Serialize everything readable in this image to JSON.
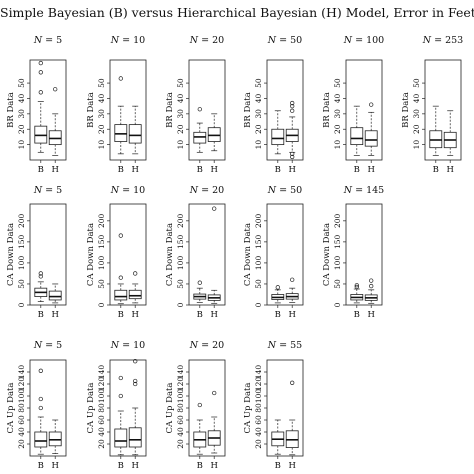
{
  "title": "Simple Bayesian (B) versus Hierarchical Bayesian (H) Model, Error in Feet",
  "chart_data": {
    "type": "boxplot",
    "title": "Simple Bayesian (B) versus Hierarchical Bayesian (H) Model, Error in Feet",
    "categories": [
      "B",
      "H"
    ],
    "rows": [
      {
        "ylabel": "BR Data",
        "ylim": [
          0,
          65
        ],
        "yticks": [
          10,
          20,
          30,
          40,
          50
        ],
        "panels": [
          {
            "label": "N = 5",
            "n": "5",
            "boxes": [
              {
                "name": "B",
                "min": 5,
                "q1": 11,
                "median": 16,
                "q3": 22,
                "max": 38,
                "outliers": [
                  44,
                  57,
                  63
                ]
              },
              {
                "name": "H",
                "min": 3,
                "q1": 10,
                "median": 14,
                "q3": 19,
                "max": 30,
                "outliers": [
                  46
                ]
              }
            ]
          },
          {
            "label": "N = 10",
            "n": "10",
            "boxes": [
              {
                "name": "B",
                "min": 4,
                "q1": 12,
                "median": 17,
                "q3": 23,
                "max": 35,
                "outliers": [
                  53
                ]
              },
              {
                "name": "H",
                "min": 4,
                "q1": 11,
                "median": 16,
                "q3": 23,
                "max": 35,
                "outliers": []
              }
            ]
          },
          {
            "label": "N = 20",
            "n": "20",
            "boxes": [
              {
                "name": "B",
                "min": 5,
                "q1": 11,
                "median": 15,
                "q3": 18,
                "max": 24,
                "outliers": [
                  33
                ]
              },
              {
                "name": "H",
                "min": 6,
                "q1": 12,
                "median": 16,
                "q3": 21,
                "max": 30,
                "outliers": []
              }
            ]
          },
          {
            "label": "N = 50",
            "n": "50",
            "boxes": [
              {
                "name": "B",
                "min": 4,
                "q1": 10,
                "median": 14,
                "q3": 20,
                "max": 32,
                "outliers": []
              },
              {
                "name": "H",
                "min": 5,
                "q1": 12,
                "median": 16,
                "q3": 20,
                "max": 28,
                "outliers": [
                  2,
                  4,
                  32,
                  35,
                  37
                ]
              }
            ]
          },
          {
            "label": "N = 100",
            "n": "100",
            "boxes": [
              {
                "name": "B",
                "min": 3,
                "q1": 10,
                "median": 14,
                "q3": 21,
                "max": 35,
                "outliers": []
              },
              {
                "name": "H",
                "min": 3,
                "q1": 9,
                "median": 13,
                "q3": 19,
                "max": 31,
                "outliers": [
                  36
                ]
              }
            ]
          },
          {
            "label": "N = 253",
            "n": "253",
            "boxes": [
              {
                "name": "B",
                "min": 3,
                "q1": 8,
                "median": 13,
                "q3": 19,
                "max": 35,
                "outliers": []
              },
              {
                "name": "H",
                "min": 3,
                "q1": 8,
                "median": 13,
                "q3": 18,
                "max": 32,
                "outliers": []
              }
            ]
          }
        ]
      },
      {
        "ylabel": "CA Down Data",
        "ylim": [
          0,
          240
        ],
        "yticks": [
          0,
          50,
          100,
          150,
          200
        ],
        "panels": [
          {
            "label": "N = 5",
            "n": "5",
            "boxes": [
              {
                "name": "B",
                "min": 8,
                "q1": 20,
                "median": 30,
                "q3": 40,
                "max": 55,
                "outliers": [
                  68,
                  75
                ]
              },
              {
                "name": "H",
                "min": 5,
                "q1": 12,
                "median": 20,
                "q3": 33,
                "max": 50,
                "outliers": []
              }
            ]
          },
          {
            "label": "N = 10",
            "n": "10",
            "boxes": [
              {
                "name": "B",
                "min": 3,
                "q1": 12,
                "median": 20,
                "q3": 35,
                "max": 50,
                "outliers": [
                  65,
                  165
                ]
              },
              {
                "name": "H",
                "min": 5,
                "q1": 15,
                "median": 22,
                "q3": 35,
                "max": 50,
                "outliers": [
                  75
                ]
              }
            ]
          },
          {
            "label": "N = 20",
            "n": "20",
            "boxes": [
              {
                "name": "B",
                "min": 6,
                "q1": 14,
                "median": 20,
                "q3": 26,
                "max": 40,
                "outliers": [
                  53
                ]
              },
              {
                "name": "H",
                "min": 4,
                "q1": 11,
                "median": 17,
                "q3": 24,
                "max": 35,
                "outliers": [
                  229
                ]
              }
            ]
          },
          {
            "label": "N = 50",
            "n": "50",
            "boxes": [
              {
                "name": "B",
                "min": 5,
                "q1": 13,
                "median": 18,
                "q3": 25,
                "max": 36,
                "outliers": [
                  42
                ]
              },
              {
                "name": "H",
                "min": 6,
                "q1": 14,
                "median": 20,
                "q3": 27,
                "max": 40,
                "outliers": [
                  60
                ]
              }
            ]
          },
          {
            "label": "N = 145",
            "n": "145",
            "boxes": [
              {
                "name": "B",
                "min": 5,
                "q1": 12,
                "median": 18,
                "q3": 25,
                "max": 38,
                "outliers": [
                  43,
                  47
                ]
              },
              {
                "name": "H",
                "min": 4,
                "q1": 11,
                "median": 17,
                "q3": 24,
                "max": 36,
                "outliers": [
                  45,
                  58
                ]
              }
            ]
          }
        ]
      },
      {
        "ylabel": "CA Up Data",
        "ylim": [
          0,
          160
        ],
        "yticks": [
          20,
          40,
          60,
          80,
          100,
          120,
          140
        ],
        "panels": [
          {
            "label": "N = 5",
            "n": "5",
            "boxes": [
              {
                "name": "B",
                "min": 3,
                "q1": 15,
                "median": 25,
                "q3": 40,
                "max": 65,
                "outliers": [
                  80,
                  95,
                  142
                ]
              },
              {
                "name": "H",
                "min": 4,
                "q1": 17,
                "median": 27,
                "q3": 40,
                "max": 60,
                "outliers": []
              }
            ]
          },
          {
            "label": "N = 10",
            "n": "10",
            "boxes": [
              {
                "name": "B",
                "min": 2,
                "q1": 15,
                "median": 25,
                "q3": 45,
                "max": 75,
                "outliers": [
                  100,
                  130
                ]
              },
              {
                "name": "H",
                "min": 2,
                "q1": 15,
                "median": 27,
                "q3": 47,
                "max": 80,
                "outliers": [
                  120,
                  125,
                  158
                ]
              }
            ]
          },
          {
            "label": "N = 20",
            "n": "20",
            "boxes": [
              {
                "name": "B",
                "min": 3,
                "q1": 15,
                "median": 27,
                "q3": 40,
                "max": 60,
                "outliers": [
                  85
                ]
              },
              {
                "name": "H",
                "min": 5,
                "q1": 18,
                "median": 30,
                "q3": 42,
                "max": 65,
                "outliers": [
                  105
                ]
              }
            ]
          },
          {
            "label": "N = 55",
            "n": "55",
            "boxes": [
              {
                "name": "B",
                "min": 3,
                "q1": 17,
                "median": 28,
                "q3": 40,
                "max": 60,
                "outliers": []
              },
              {
                "name": "H",
                "min": 2,
                "q1": 14,
                "median": 27,
                "q3": 42,
                "max": 60,
                "outliers": [
                  122
                ]
              }
            ]
          }
        ]
      }
    ]
  }
}
